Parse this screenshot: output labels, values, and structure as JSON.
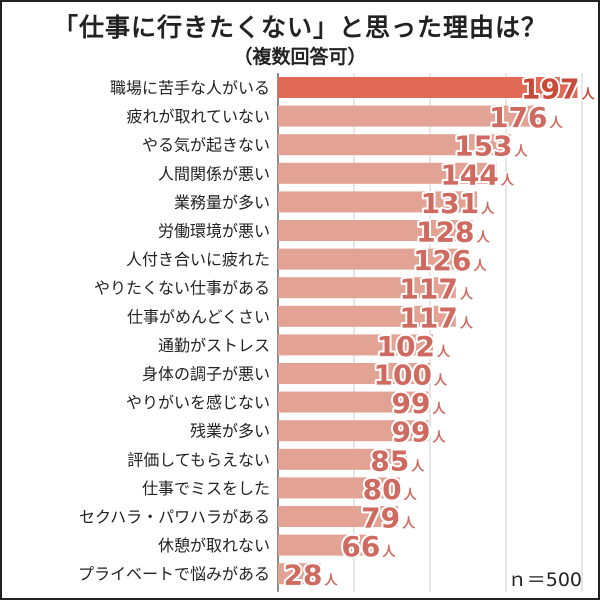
{
  "chart_data": {
    "type": "bar",
    "orientation": "horizontal",
    "title": "「仕事に行きたくない」と思った理由は？",
    "subtitle": "（複数回答可）",
    "categories": [
      "職場に苦手な人がいる",
      "疲れが取れていない",
      "やる気が起きない",
      "人間関係が悪い",
      "業務量が多い",
      "労働環境が悪い",
      "人付き合いに疲れた",
      "やりたくない仕事がある",
      "仕事がめんどくさい",
      "通勤がストレス",
      "身体の調子が悪い",
      "やりがいを感じない",
      "残業が多い",
      "評価してもらえない",
      "仕事でミスをした",
      "セクハラ・パワハラがある",
      "休憩が取れない",
      "プライベートで悩みがある"
    ],
    "values": [
      197,
      176,
      153,
      144,
      131,
      128,
      126,
      117,
      117,
      102,
      100,
      99,
      99,
      85,
      80,
      79,
      66,
      28
    ],
    "unit": "人",
    "xlim": [
      0,
      200
    ],
    "grid": true,
    "note": "ｎ＝500",
    "colors": {
      "top_bar": "#e06a55",
      "bar": "#e3a394",
      "label_top": "#c94a3a",
      "label": "#cf6a60",
      "grid": "#cccccc",
      "axis": "#666666"
    }
  }
}
